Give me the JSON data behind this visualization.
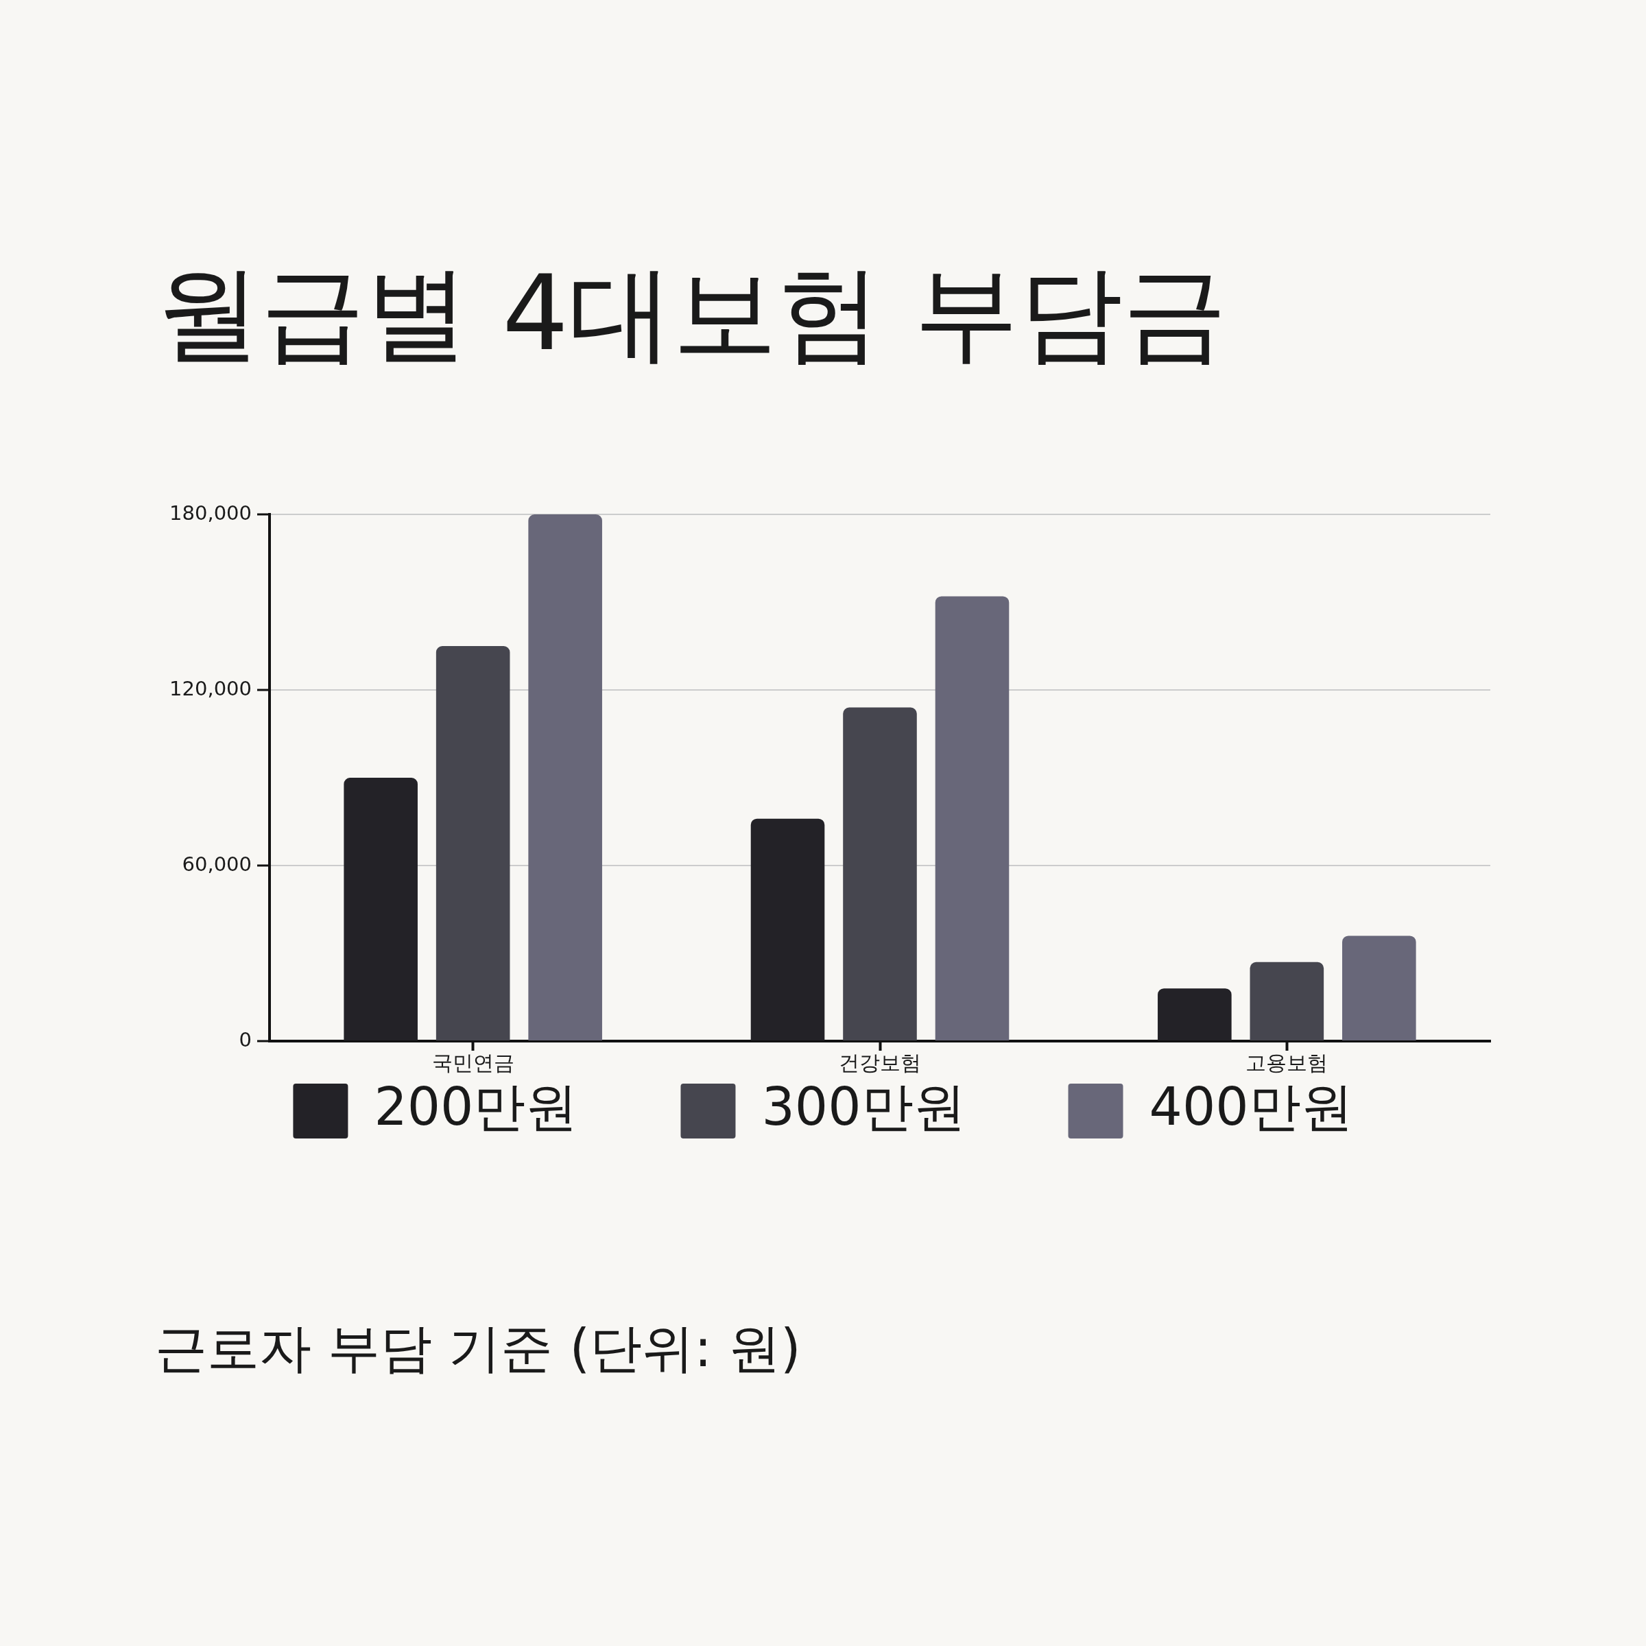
{
  "chart_data": {
    "type": "bar",
    "title": "월급별 4대보험 부담금",
    "categories": [
      "국민연금",
      "건강보험",
      "고용보험"
    ],
    "series": [
      {
        "name": "200만원",
        "color": "#232227",
        "values": [
          90000,
          76000,
          18000
        ]
      },
      {
        "name": "300만원",
        "color": "#46464f",
        "values": [
          135000,
          114000,
          27000
        ]
      },
      {
        "name": "400만원",
        "color": "#686779",
        "values": [
          180000,
          152000,
          36000
        ]
      }
    ],
    "ylim": [
      0,
      180000
    ],
    "yticks": [
      0,
      {
        "value": 60000,
        "label": "60,000"
      },
      {
        "value": 120000,
        "label": "120,000"
      },
      {
        "value": 180000,
        "label": "180,000"
      }
    ],
    "grid": "y",
    "legend": "bottom",
    "annotations": [
      "근로자 부담 기준 (단위: 원)"
    ]
  }
}
